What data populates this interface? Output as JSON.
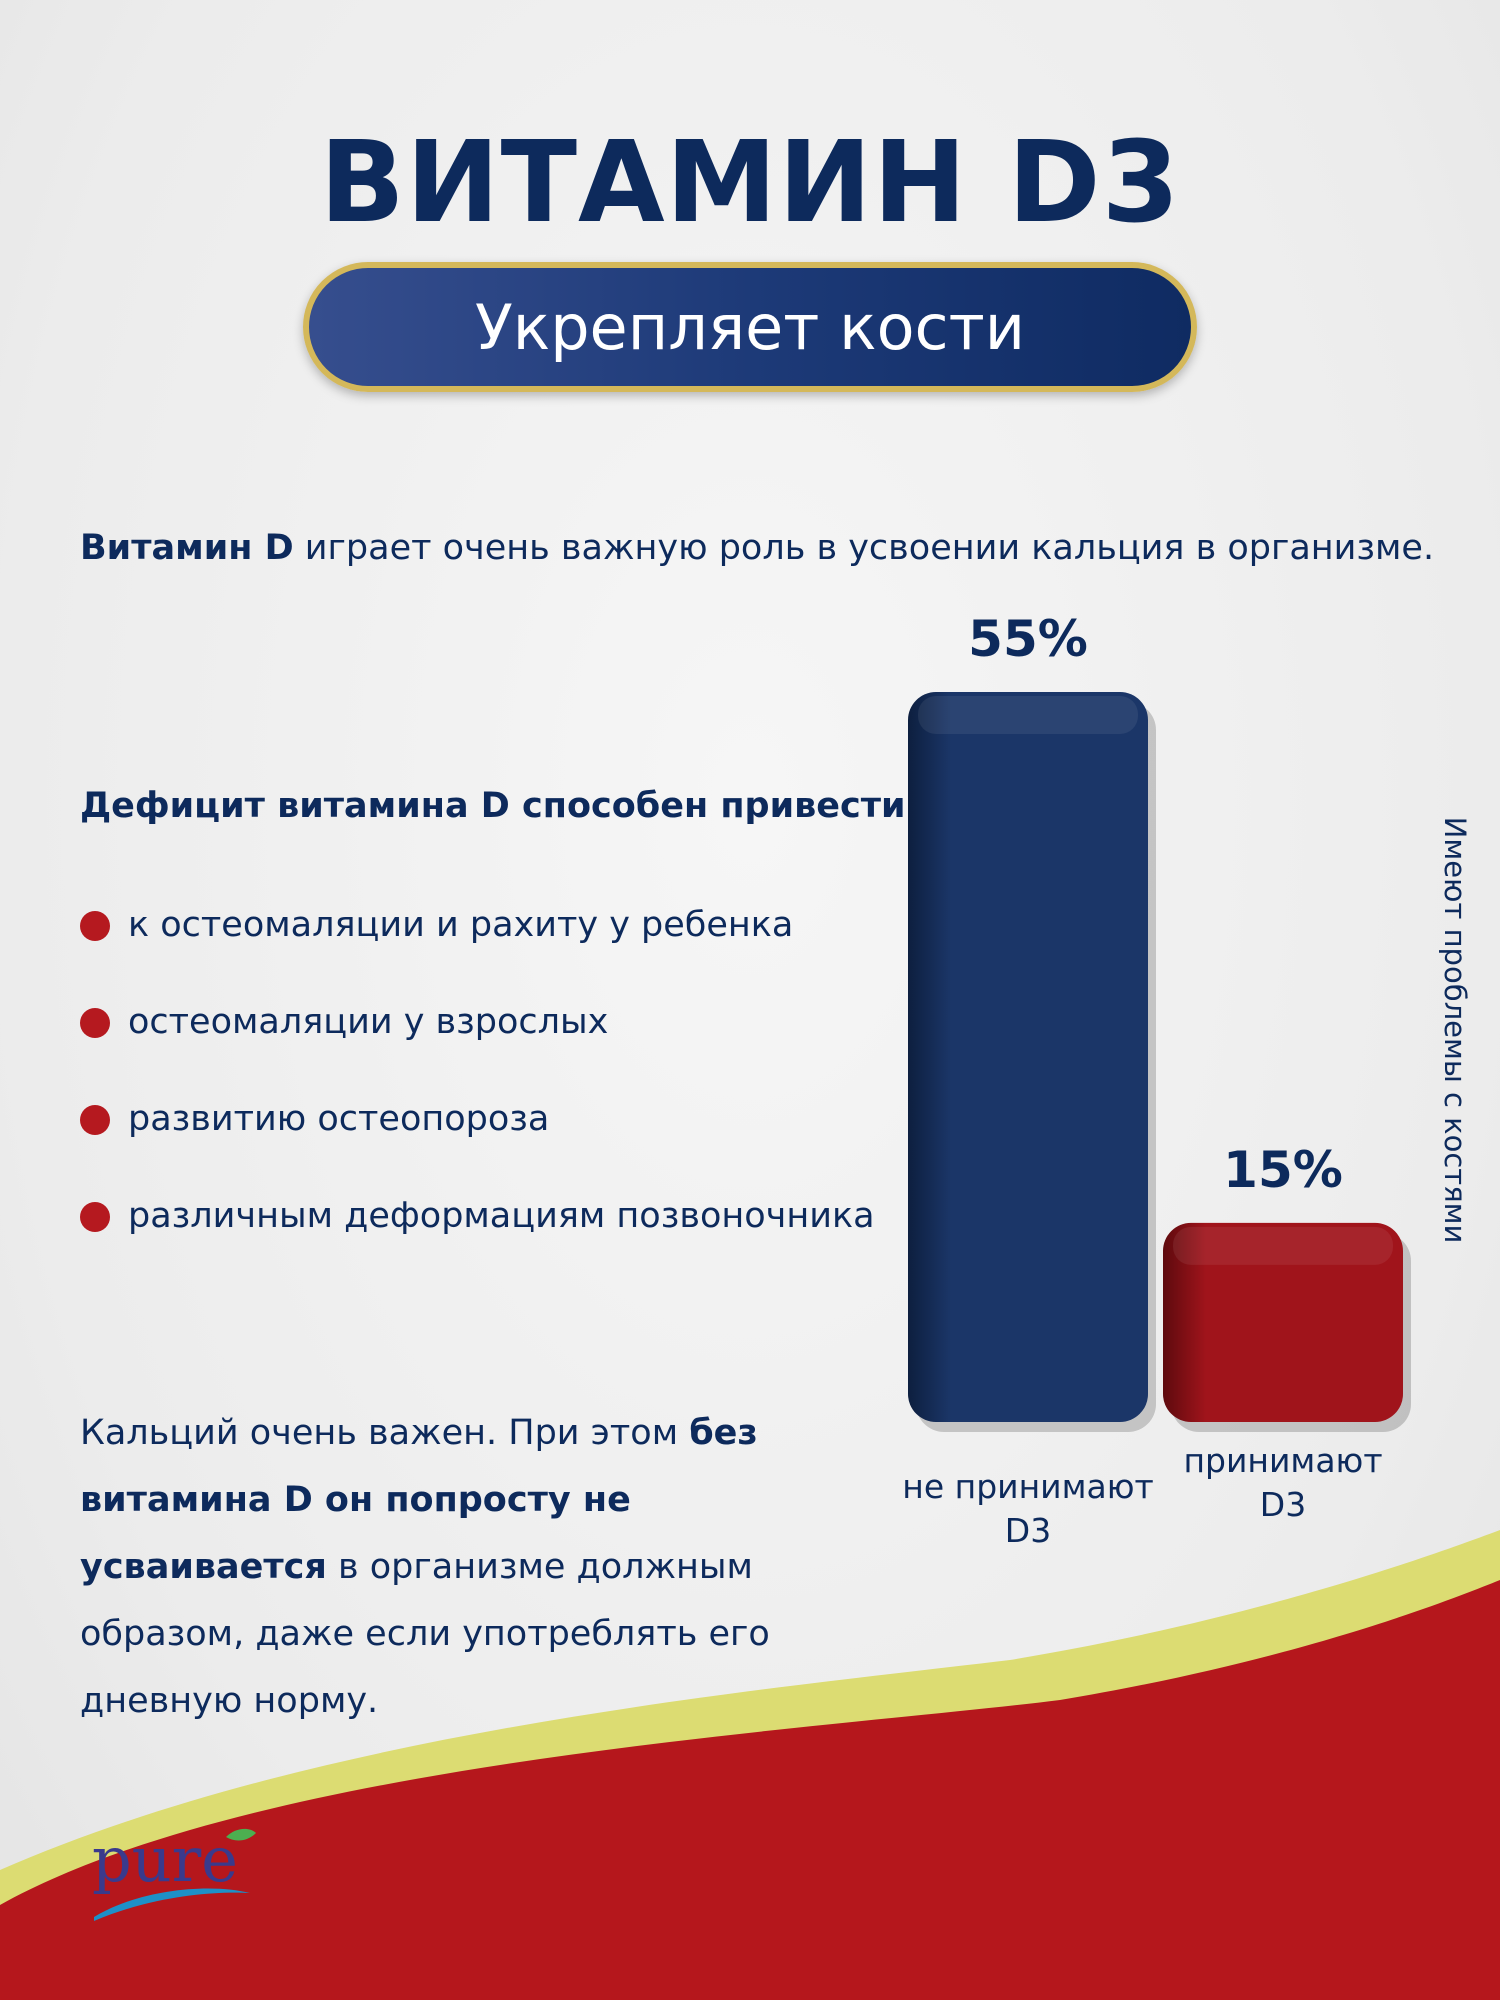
{
  "title": "ВИТАМИН D3",
  "subtitle": "Укрепляет кости",
  "intro": {
    "bold": "Витамин D",
    "rest": " играет очень важную роль в усвоении кальция в организме."
  },
  "deficit_heading": "Дефицит витамина D способен привести:",
  "bullets": [
    "к остеомаляции и рахиту у ребенка",
    "остеомаляции у взрослых",
    "развитию остеопороза",
    "различным деформациям позвоночника"
  ],
  "footer": {
    "part1": "Кальций очень важен. При этом ",
    "bold": "без витамина D он попросту не усваивается",
    "part2": " в организме должным образом, даже если употреблять его дневную норму."
  },
  "brand": "pure",
  "colors": {
    "navy": "#0d2a5c",
    "bar_blue": "#1b3668",
    "bar_red": "#a0141b",
    "bullet_red": "#b5191f",
    "wave_red": "#b5171c",
    "wave_yellow": "#dcdc72",
    "gold": "#d4b85a"
  },
  "chart_data": {
    "type": "bar",
    "categories": [
      "не принимают D3",
      "принимают D3"
    ],
    "values": [
      55,
      15
    ],
    "value_labels": [
      "55%",
      "15%"
    ],
    "ylabel": "Имеют проблемы с костями",
    "ylim": [
      0,
      55
    ],
    "grid": false,
    "colors": [
      "#1b3668",
      "#a0141b"
    ]
  }
}
